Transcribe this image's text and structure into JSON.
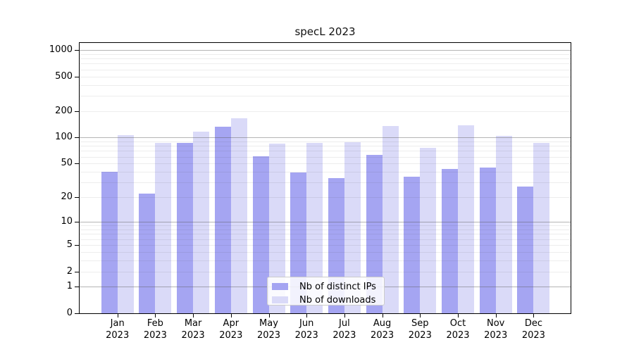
{
  "title": "specL 2023",
  "chart_data": {
    "type": "bar",
    "title": "specL 2023",
    "categories": [
      "Jan 2023",
      "Feb 2023",
      "Mar 2023",
      "Apr 2023",
      "May 2023",
      "Jun 2023",
      "Jul 2023",
      "Aug 2023",
      "Sep 2023",
      "Oct 2023",
      "Nov 2023",
      "Dec 2023"
    ],
    "series": [
      {
        "name": "Nb of distinct IPs",
        "color": "#a5a5f2",
        "values": [
          40,
          22,
          86,
          133,
          61,
          39,
          34,
          63,
          35,
          43,
          45,
          27
        ]
      },
      {
        "name": "Nb of downloads",
        "color": "#dadaf8",
        "values": [
          106,
          86,
          117,
          166,
          85,
          86,
          89,
          135,
          76,
          137,
          104,
          87
        ]
      }
    ],
    "xlabel": "",
    "ylabel": "",
    "y_scale": "log10(value+1)",
    "y_ticks": [
      0,
      1,
      2,
      5,
      10,
      20,
      50,
      100,
      200,
      500,
      1000
    ],
    "ylim": [
      0,
      1200
    ],
    "grid": "both",
    "legend_position": "bottom-center"
  },
  "legend": {
    "items": [
      {
        "label": "Nb of distinct IPs",
        "color": "#a5a5f2"
      },
      {
        "label": "Nb of downloads",
        "color": "#dadaf8"
      }
    ]
  },
  "colors": {
    "bar_distinct_ips": "#a5a5f2",
    "bar_downloads": "#dadaf8",
    "grid_major": "rgba(90,90,90,0.45)",
    "grid_minor": "rgba(60,60,60,0.09)",
    "axis_frame": "#000000",
    "legend_border": "#cccccc",
    "background": "#ffffff"
  }
}
